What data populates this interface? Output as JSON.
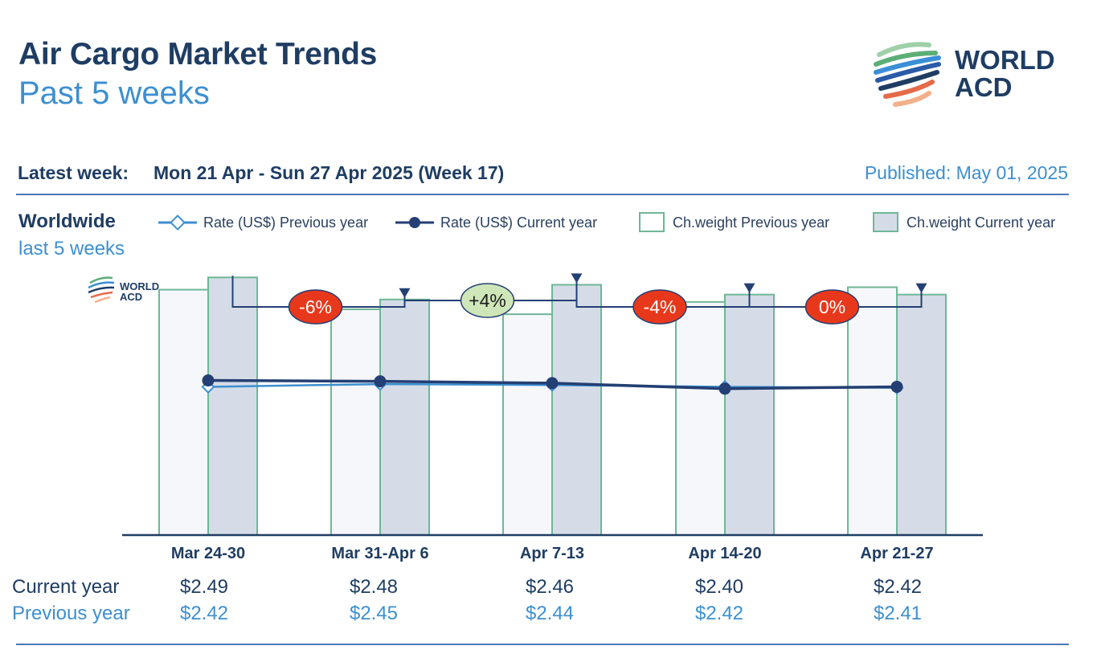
{
  "header": {
    "title": "Air Cargo Market Trends",
    "subtitle": "Past 5 weeks",
    "logo_text_line1": "WORLD",
    "logo_text_line2": "ACD"
  },
  "info": {
    "latest_label": "Latest week:",
    "latest_value": "Mon 21 Apr - Sun 27 Apr 2025 (Week 17)",
    "published": "Published: May 01, 2025"
  },
  "region": {
    "name": "Worldwide",
    "period": "last 5 weeks"
  },
  "legend": [
    {
      "label": "Rate (US$) Previous year",
      "icon": "line-diamond-icon"
    },
    {
      "label": "Rate (US$) Current year",
      "icon": "line-dot-icon"
    },
    {
      "label": "Ch.weight Previous year",
      "icon": "hollow-square-icon"
    },
    {
      "label": "Ch.weight Current year",
      "icon": "filled-square-icon"
    }
  ],
  "colors": {
    "navy": "#1f3d63",
    "blue": "#3d8fd0",
    "rate_current": "#243f73",
    "rate_previous": "#3d8fd0",
    "bar_border": "#6fb796",
    "bar_prev_fill": "#f5f7fb",
    "bar_curr_fill": "#d5dce8",
    "badge_negative": "#e8381b",
    "badge_positive": "#cfe6b8"
  },
  "chart_data": {
    "type": "bar",
    "categories": [
      "Mar 24-30",
      "Mar 31-Apr 6",
      "Apr 7-13",
      "Apr 14-20",
      "Apr 21-27"
    ],
    "series": [
      {
        "name": "Ch.weight Previous year",
        "kind": "bar",
        "values": [
          100,
          92,
          90,
          95,
          101
        ]
      },
      {
        "name": "Ch.weight Current year",
        "kind": "bar",
        "values": [
          105,
          96,
          102,
          98,
          98
        ]
      },
      {
        "name": "Rate (US$) Previous year",
        "kind": "line",
        "values": [
          2.42,
          2.45,
          2.44,
          2.42,
          2.41
        ]
      },
      {
        "name": "Rate (US$) Current year",
        "kind": "line",
        "values": [
          2.49,
          2.48,
          2.46,
          2.4,
          2.42
        ]
      }
    ],
    "changes": [
      "-6%",
      "+4%",
      "-4%",
      "0%"
    ],
    "change_signs": [
      "negative",
      "positive",
      "negative",
      "negative"
    ],
    "weight_ylim": [
      0,
      110
    ],
    "rate_ylim": [
      0.8,
      3.75
    ],
    "watermark_line1": "WORLD",
    "watermark_line2": "ACD"
  },
  "table": {
    "current_label": "Current year",
    "previous_label": "Previous year",
    "current_values": [
      "$2.49",
      "$2.48",
      "$2.46",
      "$2.40",
      "$2.42"
    ],
    "previous_values": [
      "$2.42",
      "$2.45",
      "$2.44",
      "$2.42",
      "$2.41"
    ]
  }
}
